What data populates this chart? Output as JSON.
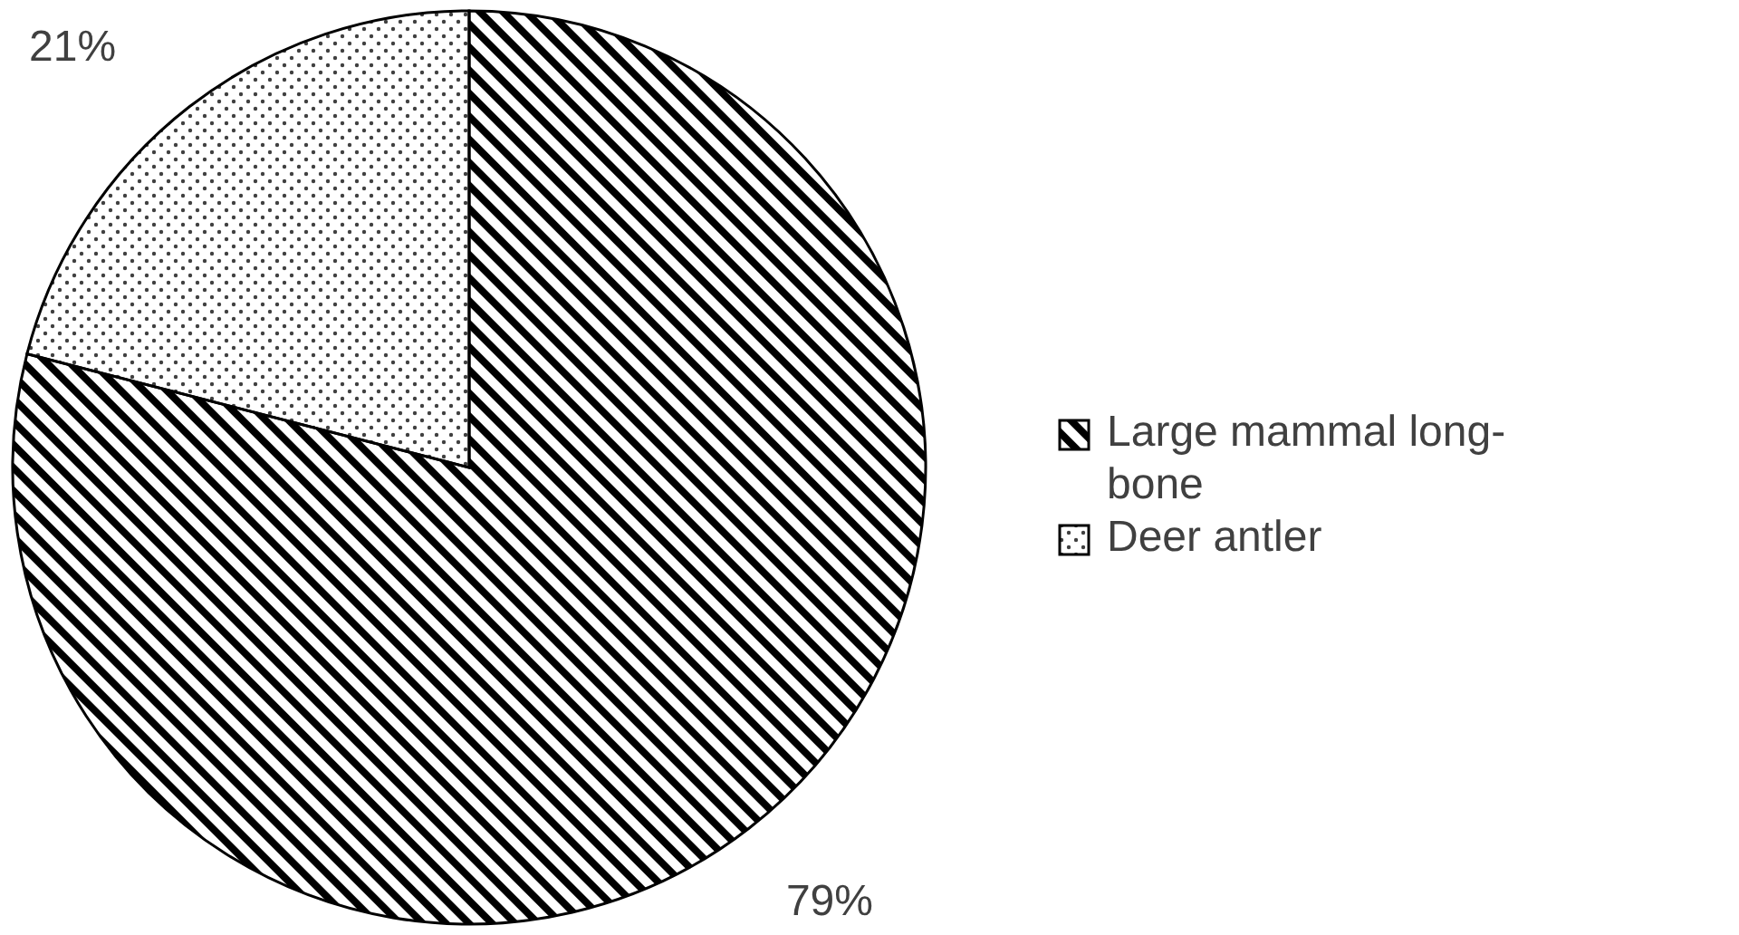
{
  "chart_data": {
    "type": "pie",
    "categories": [
      "Large mammal long-bone",
      "Deer antler"
    ],
    "values": [
      79,
      21
    ],
    "colors": [
      "#000000",
      "#404040"
    ],
    "value_labels": [
      "79%",
      "21%"
    ],
    "legend": "right"
  }
}
